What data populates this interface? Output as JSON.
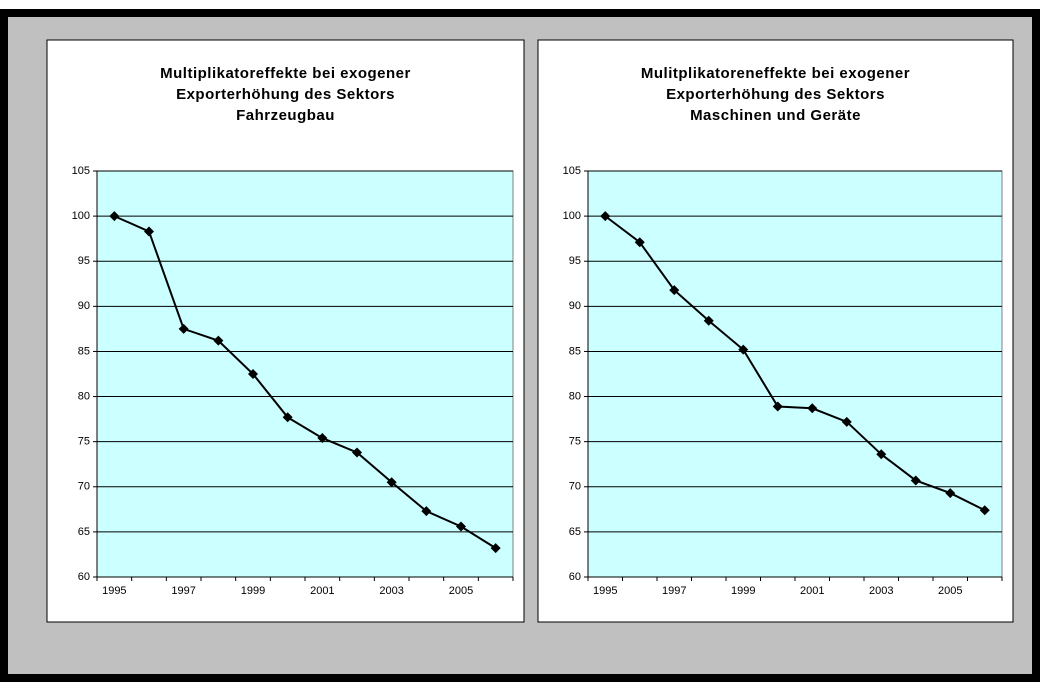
{
  "chart_data": [
    {
      "type": "line",
      "title": [
        "Multiplikatoreffekte bei exogener",
        "Exporterhöhung des Sektors",
        "Fahrzeugbau"
      ],
      "categories": [
        "1995",
        null,
        "1997",
        null,
        "1999",
        null,
        "2001",
        null,
        "2003",
        null,
        "2005",
        null
      ],
      "values": [
        100,
        98.3,
        87.5,
        86.2,
        82.5,
        77.7,
        75.4,
        73.8,
        70.5,
        67.3,
        65.6,
        63.2
      ],
      "color": "#000000",
      "plot_background": "#ccffff",
      "ylim": [
        60,
        105
      ],
      "yticks": [
        60,
        65,
        70,
        75,
        80,
        85,
        90,
        95,
        100,
        105
      ],
      "grid": true
    },
    {
      "type": "line",
      "title": [
        "Mulitplikatoreneffekte bei exogener",
        "Exporterhöhung des Sektors",
        "Maschinen und Geräte"
      ],
      "categories": [
        "1995",
        null,
        "1997",
        null,
        "1999",
        null,
        "2001",
        null,
        "2003",
        null,
        "2005",
        null
      ],
      "values": [
        100,
        97.1,
        91.8,
        88.4,
        85.2,
        78.9,
        78.7,
        77.2,
        73.6,
        70.7,
        69.3,
        67.4
      ],
      "color": "#000000",
      "plot_background": "#ccffff",
      "ylim": [
        60,
        105
      ],
      "yticks": [
        60,
        65,
        70,
        75,
        80,
        85,
        90,
        95,
        100,
        105
      ],
      "grid": true
    }
  ]
}
